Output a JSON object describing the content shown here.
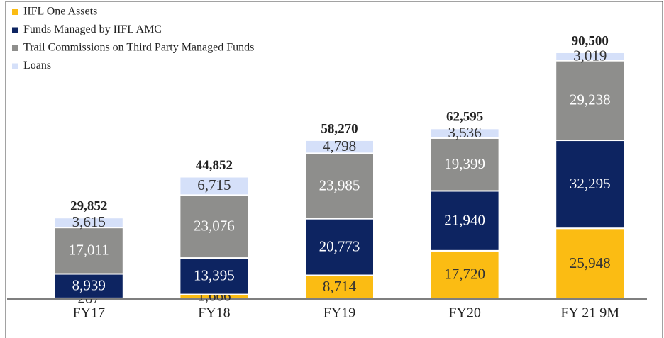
{
  "chart_data": {
    "type": "stacked_bar",
    "categories": [
      "FY17",
      "FY18",
      "FY19",
      "FY20",
      "FY 21 9M"
    ],
    "series": [
      {
        "name": "IIFL One Assets",
        "color": "#fbbc13",
        "label_color": "#333333",
        "values": [
          287,
          1666,
          8714,
          17720,
          25948
        ],
        "value_labels": [
          "287",
          "1,666",
          "8,714",
          "17,720",
          "25,948"
        ]
      },
      {
        "name": "Funds Managed by IIFL AMC",
        "color": "#0d2461",
        "label_color": "#ffffff",
        "values": [
          8939,
          13395,
          20773,
          21940,
          32295
        ],
        "value_labels": [
          "8,939",
          "13,395",
          "20,773",
          "21,940",
          "32,295"
        ]
      },
      {
        "name": "Trail Commissions on Third Party Managed Funds",
        "color": "#8e8e8c",
        "label_color": "#ffffff",
        "values": [
          17011,
          23076,
          23985,
          19399,
          29238
        ],
        "value_labels": [
          "17,011",
          "23,076",
          "23,985",
          "19,399",
          "29,238"
        ]
      },
      {
        "name": "Loans",
        "color": "#d5e0f9",
        "label_color": "#333333",
        "values": [
          3615,
          6715,
          4798,
          3536,
          3019
        ],
        "value_labels": [
          "3,615",
          "6,715",
          "4,798",
          "3,536",
          "3,019"
        ]
      }
    ],
    "totals": [
      29852,
      44852,
      58270,
      62595,
      90500
    ],
    "total_labels": [
      "29,852",
      "44,852",
      "58,270",
      "62,595",
      "90,500"
    ],
    "ylim": [
      0,
      110000
    ]
  }
}
